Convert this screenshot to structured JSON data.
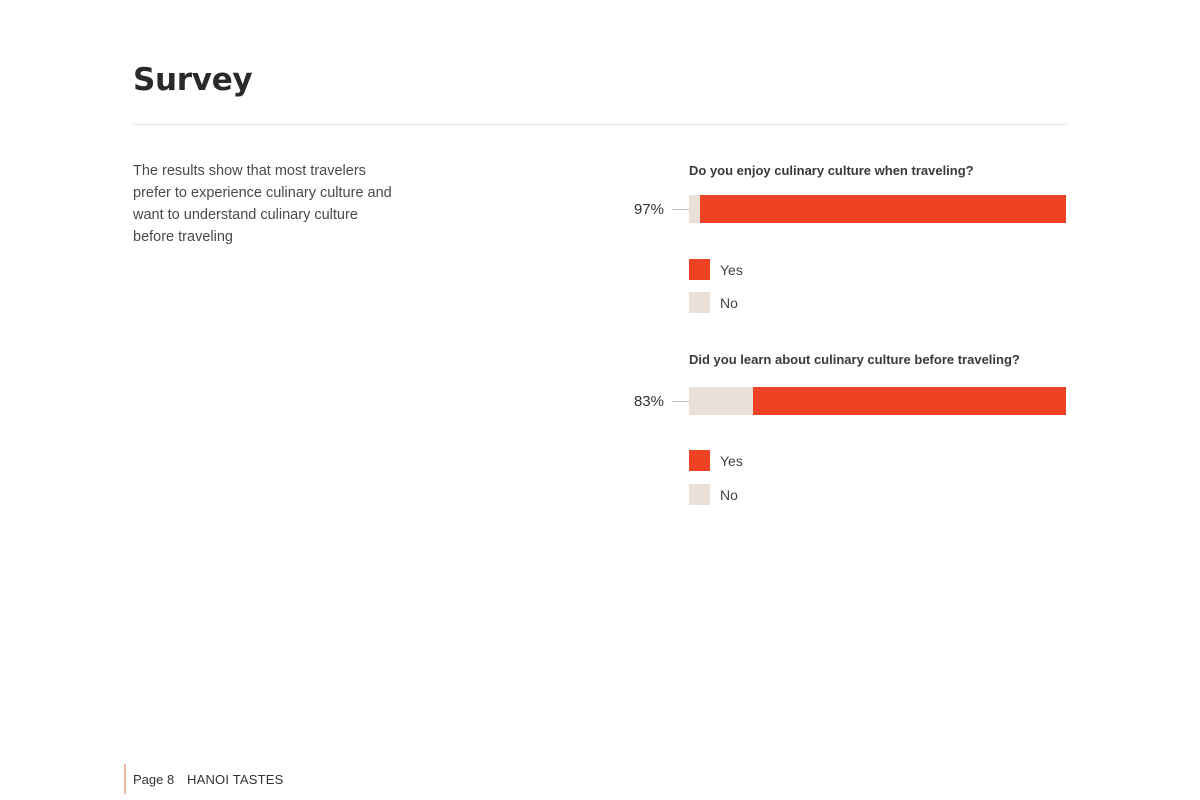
{
  "page": {
    "title": "Survey",
    "intro": "The results show that most travelers prefer to experience culinary culture and want to understand culinary culture before traveling"
  },
  "colors": {
    "yes": "#ef4123",
    "no": "#ebe0d8"
  },
  "chart_data": [
    {
      "type": "bar",
      "stacked": true,
      "orientation": "horizontal",
      "title": "Do you enjoy culinary culture when traveling?",
      "label": "97%",
      "series": [
        {
          "name": "No",
          "value": 3
        },
        {
          "name": "Yes",
          "value": 97
        }
      ],
      "xlim": [
        0,
        100
      ],
      "legend": [
        "Yes",
        "No"
      ],
      "legend_position": "below"
    },
    {
      "type": "bar",
      "stacked": true,
      "orientation": "horizontal",
      "title": "Did you learn about culinary culture before traveling?",
      "label": "83%",
      "series": [
        {
          "name": "No",
          "value": 17
        },
        {
          "name": "Yes",
          "value": 83
        }
      ],
      "xlim": [
        0,
        100
      ],
      "legend": [
        "Yes",
        "No"
      ],
      "legend_position": "below"
    }
  ],
  "footer": {
    "page": "Page 8",
    "brand": "HANOI TASTES"
  }
}
